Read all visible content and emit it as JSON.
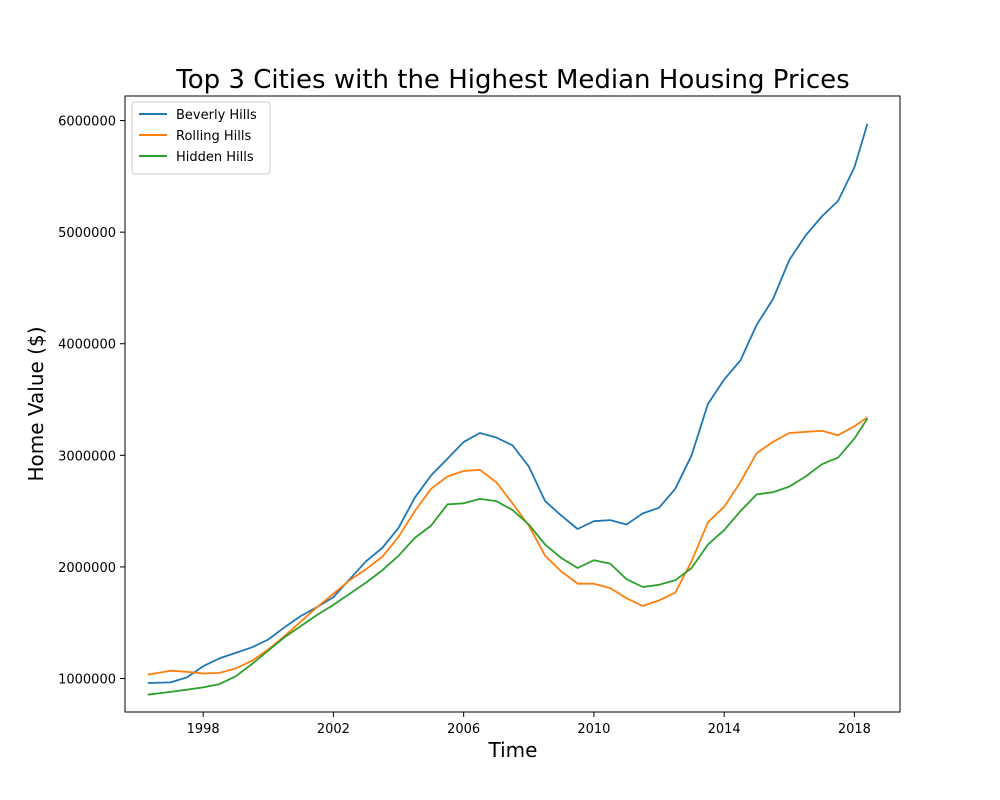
{
  "chart_data": {
    "type": "line",
    "title": "Top 3 Cities with the Highest Median Housing Prices",
    "xlabel": "Time",
    "ylabel": "Home Value ($)",
    "xlim": [
      1995.6,
      2019.4
    ],
    "ylim": [
      700000,
      6220000
    ],
    "xticks": [
      1998,
      2002,
      2006,
      2010,
      2014,
      2018
    ],
    "yticks": [
      1000000,
      2000000,
      3000000,
      4000000,
      5000000,
      6000000
    ],
    "legend_position": "top-left",
    "grid": false,
    "series": [
      {
        "name": "Beverly Hills",
        "color": "#1f77b4",
        "x": [
          1996.3,
          1997.0,
          1997.5,
          1998.0,
          1998.5,
          1999.0,
          1999.5,
          2000.0,
          2000.5,
          2001.0,
          2001.5,
          2002.0,
          2002.5,
          2003.0,
          2003.5,
          2004.0,
          2004.5,
          2005.0,
          2005.5,
          2006.0,
          2006.5,
          2007.0,
          2007.5,
          2008.0,
          2008.5,
          2009.0,
          2009.5,
          2010.0,
          2010.5,
          2011.0,
          2011.5,
          2012.0,
          2012.5,
          2013.0,
          2013.5,
          2014.0,
          2014.5,
          2015.0,
          2015.5,
          2016.0,
          2016.5,
          2017.0,
          2017.5,
          2018.0,
          2018.4
        ],
        "values": [
          960000,
          965000,
          1010000,
          1110000,
          1180000,
          1230000,
          1280000,
          1350000,
          1460000,
          1560000,
          1640000,
          1730000,
          1890000,
          2050000,
          2170000,
          2350000,
          2620000,
          2820000,
          2970000,
          3120000,
          3200000,
          3160000,
          3090000,
          2900000,
          2590000,
          2460000,
          2340000,
          2410000,
          2420000,
          2380000,
          2480000,
          2530000,
          2700000,
          3000000,
          3460000,
          3680000,
          3850000,
          4170000,
          4400000,
          4750000,
          4970000,
          5140000,
          5280000,
          5580000,
          5970000
        ]
      },
      {
        "name": "Rolling Hills",
        "color": "#ff7f0e",
        "x": [
          1996.3,
          1997.0,
          1997.5,
          1998.0,
          1998.5,
          1999.0,
          1999.5,
          2000.0,
          2000.5,
          2001.0,
          2001.5,
          2002.0,
          2002.5,
          2003.0,
          2003.5,
          2004.0,
          2004.5,
          2005.0,
          2005.5,
          2006.0,
          2006.5,
          2007.0,
          2007.5,
          2008.0,
          2008.5,
          2009.0,
          2009.5,
          2010.0,
          2010.5,
          2011.0,
          2011.5,
          2012.0,
          2012.5,
          2013.0,
          2013.5,
          2014.0,
          2014.5,
          2015.0,
          2015.5,
          2016.0,
          2016.5,
          2017.0,
          2017.5,
          2018.0,
          2018.4
        ],
        "values": [
          1035000,
          1070000,
          1060000,
          1045000,
          1050000,
          1090000,
          1160000,
          1260000,
          1380000,
          1510000,
          1640000,
          1760000,
          1880000,
          1980000,
          2090000,
          2270000,
          2500000,
          2700000,
          2810000,
          2860000,
          2870000,
          2760000,
          2570000,
          2370000,
          2100000,
          1960000,
          1850000,
          1850000,
          1810000,
          1720000,
          1650000,
          1700000,
          1770000,
          2050000,
          2400000,
          2540000,
          2760000,
          3020000,
          3120000,
          3200000,
          3210000,
          3220000,
          3180000,
          3260000,
          3340000
        ]
      },
      {
        "name": "Hidden Hills",
        "color": "#2ca02c",
        "x": [
          1996.3,
          1997.0,
          1997.5,
          1998.0,
          1998.5,
          1999.0,
          1999.5,
          2000.0,
          2000.5,
          2001.0,
          2001.5,
          2002.0,
          2002.5,
          2003.0,
          2003.5,
          2004.0,
          2004.5,
          2005.0,
          2005.5,
          2006.0,
          2006.5,
          2007.0,
          2007.5,
          2008.0,
          2008.5,
          2009.0,
          2009.5,
          2010.0,
          2010.5,
          2011.0,
          2011.5,
          2012.0,
          2012.5,
          2013.0,
          2013.5,
          2014.0,
          2014.5,
          2015.0,
          2015.5,
          2016.0,
          2016.5,
          2017.0,
          2017.5,
          2018.0,
          2018.4
        ],
        "values": [
          855000,
          880000,
          900000,
          920000,
          950000,
          1020000,
          1130000,
          1250000,
          1370000,
          1470000,
          1570000,
          1660000,
          1760000,
          1860000,
          1970000,
          2100000,
          2260000,
          2370000,
          2560000,
          2570000,
          2610000,
          2590000,
          2510000,
          2380000,
          2200000,
          2080000,
          1990000,
          2060000,
          2030000,
          1890000,
          1820000,
          1840000,
          1880000,
          1990000,
          2200000,
          2330000,
          2500000,
          2650000,
          2670000,
          2720000,
          2810000,
          2920000,
          2980000,
          3150000,
          3330000
        ]
      }
    ]
  }
}
